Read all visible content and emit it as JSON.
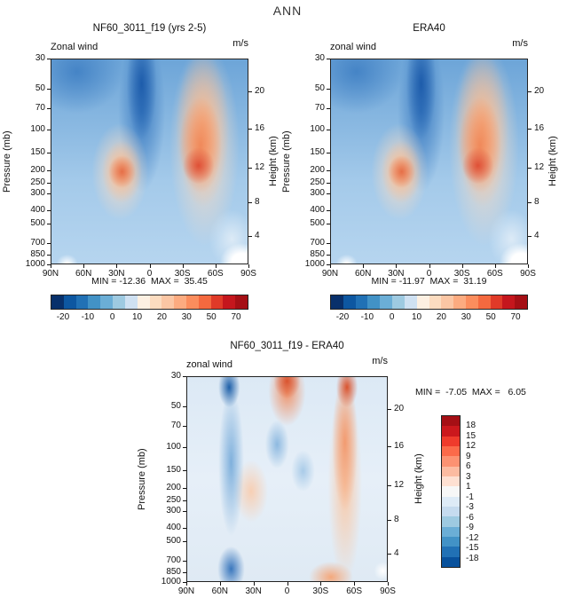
{
  "page_title": "ANN",
  "axes": {
    "pressure_label": "Pressure (mb)",
    "pressure_ticks": [
      "30",
      "50",
      "70",
      "100",
      "150",
      "200",
      "250",
      "300",
      "400",
      "500",
      "700",
      "850",
      "1000"
    ],
    "height_label": "Height (km)",
    "height_ticks": [
      "20",
      "16",
      "12",
      "8",
      "4"
    ],
    "lat_ticks": [
      "90N",
      "60N",
      "30N",
      "0",
      "30S",
      "60S",
      "90S"
    ]
  },
  "colorbars": {
    "horizontal": {
      "cells": [
        "#08306b",
        "#0d57a1",
        "#2171b5",
        "#4292c6",
        "#6baed6",
        "#9ecae1",
        "#cfe1f2",
        "#fdf0e2",
        "#fcdcc0",
        "#fbc6a4",
        "#fcab80",
        "#fb8d5d",
        "#f4693f",
        "#e03a28",
        "#c5161d",
        "#a50f15"
      ],
      "tick_labels": [
        "-20",
        "-10",
        "0",
        "10",
        "20",
        "30",
        "50",
        "70"
      ]
    },
    "vertical": {
      "cells": [
        "#a50f15",
        "#cb181d",
        "#ef3b2c",
        "#fb6a4a",
        "#fc9272",
        "#fcbba1",
        "#fee0d2",
        "#f7f7f7",
        "#deebf7",
        "#c6dbef",
        "#9ecae1",
        "#6baed6",
        "#4292c6",
        "#2171b5",
        "#08519c"
      ],
      "tick_labels": [
        "18",
        "15",
        "12",
        "9",
        "6",
        "3",
        "1",
        "-1",
        "-3",
        "-6",
        "-9",
        "-12",
        "-15",
        "-18"
      ]
    }
  },
  "panels": [
    {
      "title": "NF60_3011_f19 (yrs 2-5)",
      "field_label": "Zonal wind",
      "units_label": "m/s",
      "stats": "MIN = -12.36  MAX =  35.45"
    },
    {
      "title": "ERA40",
      "field_label": "zonal wind",
      "units_label": "m/s",
      "stats": "MIN = -11.97  MAX =  31.19"
    },
    {
      "title": "NF60_3011_f19 - ERA40",
      "field_label": "zonal wind",
      "units_label": "m/s",
      "stats": "MIN =  -7.05  MAX =   6.05"
    }
  ],
  "chart_data": [
    {
      "type": "heatmap",
      "subtype": "filled-contour latitude-pressure cross-section",
      "title": "NF60_3011_f19 (yrs 2-5)",
      "figure_title": "ANN",
      "variable": "Zonal wind",
      "units": "m/s",
      "x_ticks": [
        "90N",
        "60N",
        "30N",
        "0",
        "30S",
        "60S",
        "90S"
      ],
      "ylabel": "Pressure (mb)",
      "y_ticks": [
        30,
        50,
        70,
        100,
        150,
        200,
        250,
        300,
        400,
        500,
        700,
        850,
        1000
      ],
      "y_scale": "log",
      "y2label": "Height (km)",
      "y2_ticks": [
        20,
        16,
        12,
        8,
        4
      ],
      "min": -12.36,
      "max": 35.45,
      "colorbar_ticks": [
        -20,
        -10,
        0,
        10,
        20,
        30,
        50,
        70
      ],
      "legend_position": "bottom",
      "grid": false
    },
    {
      "type": "heatmap",
      "subtype": "filled-contour latitude-pressure cross-section",
      "title": "ERA40",
      "figure_title": "ANN",
      "variable": "zonal wind",
      "units": "m/s",
      "x_ticks": [
        "90N",
        "60N",
        "30N",
        "0",
        "30S",
        "60S",
        "90S"
      ],
      "ylabel": "Pressure (mb)",
      "y_ticks": [
        30,
        50,
        70,
        100,
        150,
        200,
        250,
        300,
        400,
        500,
        700,
        850,
        1000
      ],
      "y_scale": "log",
      "y2label": "Height (km)",
      "y2_ticks": [
        20,
        16,
        12,
        8,
        4
      ],
      "min": -11.97,
      "max": 31.19,
      "colorbar_ticks": [
        -20,
        -10,
        0,
        10,
        20,
        30,
        50,
        70
      ],
      "legend_position": "bottom",
      "grid": false
    },
    {
      "type": "heatmap",
      "subtype": "filled-contour latitude-pressure difference cross-section",
      "title": "NF60_3011_f19 - ERA40",
      "variable": "zonal wind",
      "units": "m/s",
      "x_ticks": [
        "90N",
        "60N",
        "30N",
        "0",
        "30S",
        "60S",
        "90S"
      ],
      "ylabel": "Pressure (mb)",
      "y_ticks": [
        30,
        50,
        70,
        100,
        150,
        200,
        250,
        300,
        400,
        500,
        700,
        850,
        1000
      ],
      "y_scale": "log",
      "y2label": "Height (km)",
      "y2_ticks": [
        20,
        16,
        12,
        8,
        4
      ],
      "min": -7.05,
      "max": 6.05,
      "colorbar_ticks": [
        18,
        15,
        12,
        9,
        6,
        3,
        1,
        -1,
        -3,
        -6,
        -9,
        -12,
        -15,
        -18
      ],
      "legend_position": "right",
      "grid": false
    }
  ]
}
